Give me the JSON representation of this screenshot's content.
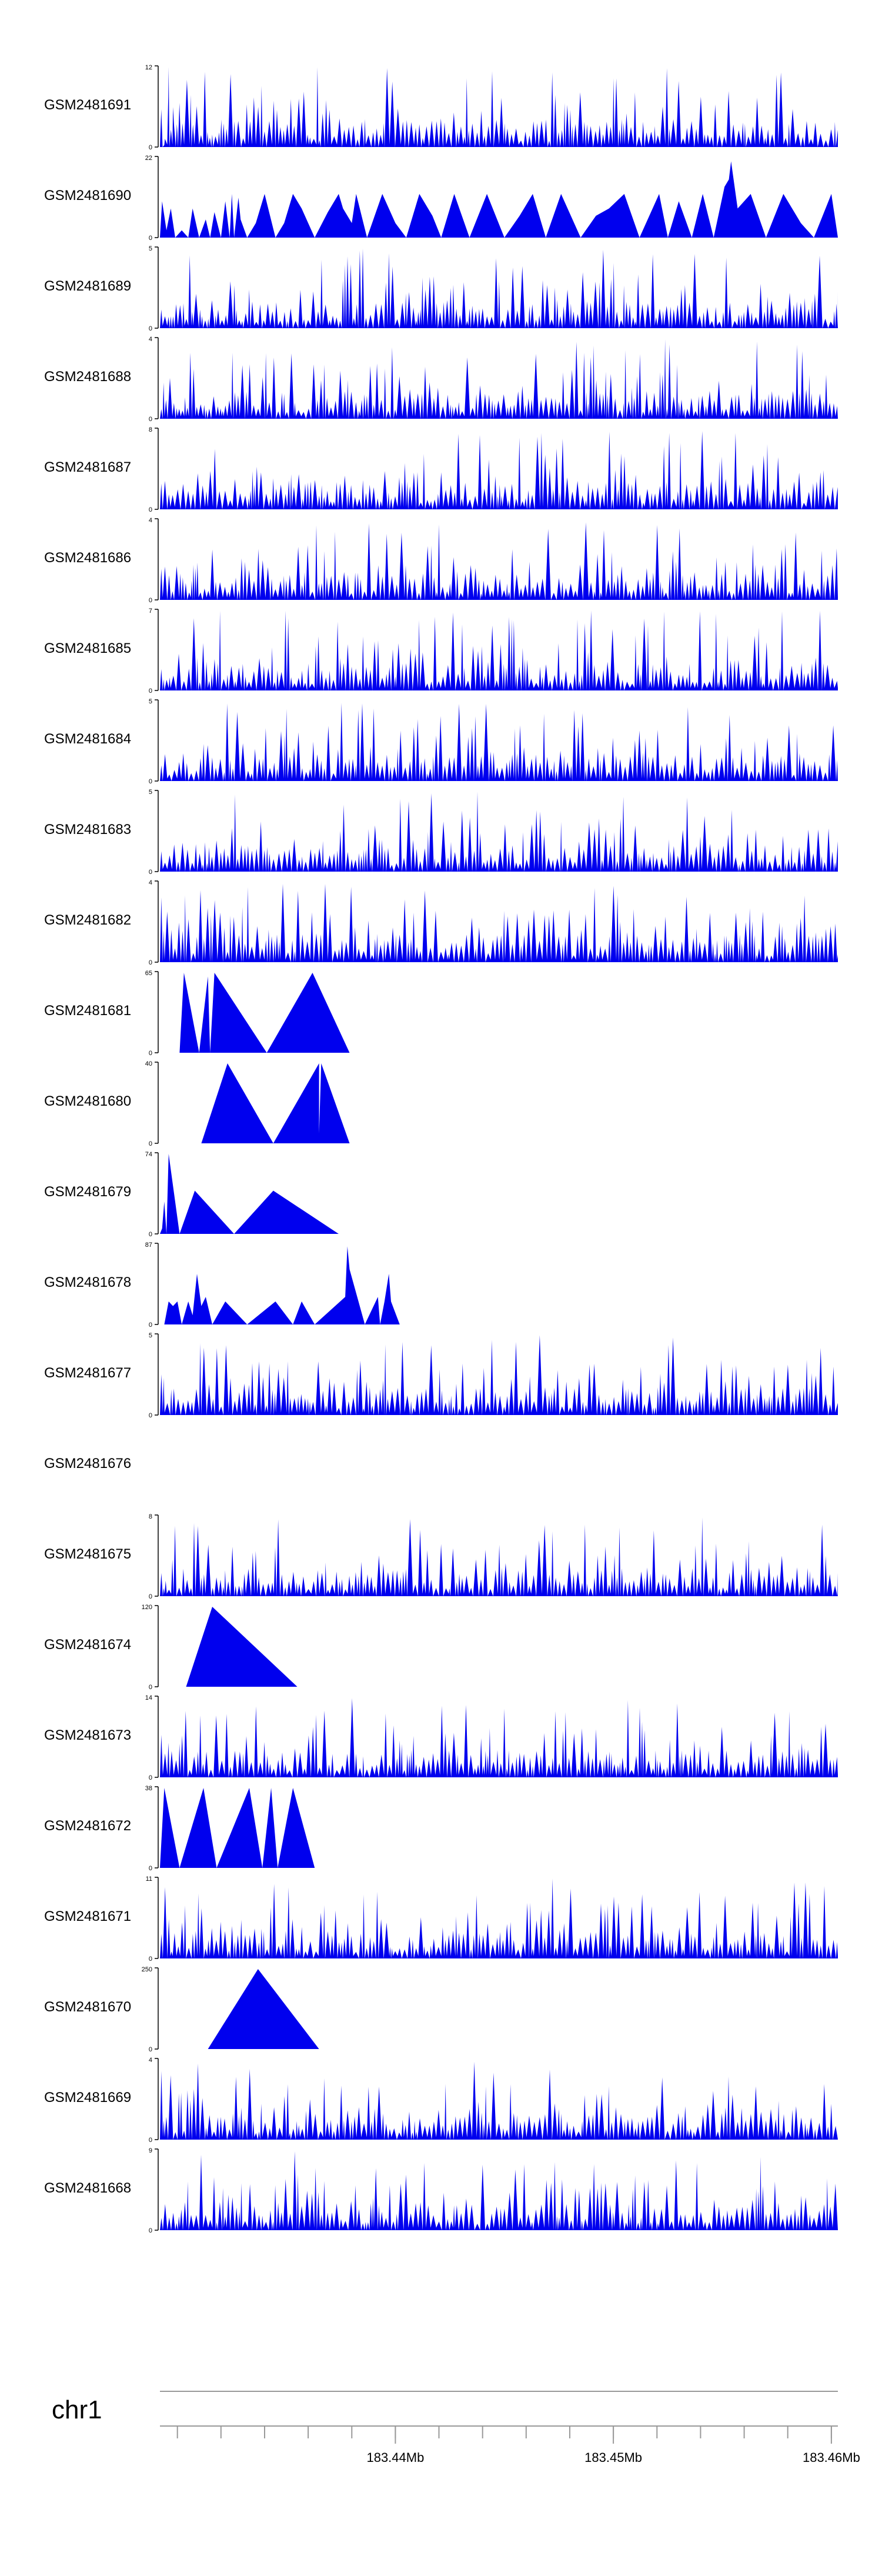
{
  "chart_data": {
    "type": "area",
    "title": "",
    "chromosome": "chr1",
    "x_unit": "Mb",
    "xlim": [
      183.4292,
      183.4603
    ],
    "x_ticks": [
      183.44,
      183.45,
      183.46
    ],
    "x_tick_labels": [
      "183.44Mb",
      "183.45Mb",
      "183.46Mb"
    ],
    "fill_color": "#0000ee",
    "axis_color": "#000000",
    "tracks": [
      {
        "name": "GSM2481691",
        "ymax": "12",
        "ymin": "0",
        "pattern": "spiky",
        "seed": 11,
        "peak": 1.0,
        "points": [
          [
            183.4294,
            0.3
          ],
          [
            183.4296,
            12
          ],
          [
            183.4298,
            6
          ],
          [
            183.43,
            2
          ]
        ]
      },
      {
        "name": "GSM2481690",
        "ymax": "22",
        "ymin": "0",
        "pattern": "points",
        "points": [
          [
            183.4292,
            0
          ],
          [
            183.4293,
            10
          ],
          [
            183.4295,
            2
          ],
          [
            183.4297,
            8
          ],
          [
            183.4299,
            0
          ],
          [
            183.4302,
            2
          ],
          [
            183.4305,
            0
          ],
          [
            183.4307,
            8
          ],
          [
            183.431,
            0
          ],
          [
            183.4313,
            5
          ],
          [
            183.4315,
            0
          ],
          [
            183.4317,
            7
          ],
          [
            183.432,
            0
          ],
          [
            183.4322,
            10
          ],
          [
            183.4324,
            0
          ],
          [
            183.4325,
            12
          ],
          [
            183.4326,
            0
          ],
          [
            183.4328,
            11
          ],
          [
            183.4329,
            5
          ],
          [
            183.4332,
            0
          ],
          [
            183.4336,
            4
          ],
          [
            183.434,
            12
          ],
          [
            183.4345,
            0
          ],
          [
            183.4349,
            4
          ],
          [
            183.4353,
            12
          ],
          [
            183.4357,
            8
          ],
          [
            183.4363,
            0
          ],
          [
            183.4369,
            7
          ],
          [
            183.4374,
            12
          ],
          [
            183.4376,
            8
          ],
          [
            183.438,
            4
          ],
          [
            183.4382,
            12
          ],
          [
            183.4387,
            0
          ],
          [
            183.4394,
            12
          ],
          [
            183.44,
            4
          ],
          [
            183.4405,
            0
          ],
          [
            183.4411,
            12
          ],
          [
            183.4417,
            6
          ],
          [
            183.4421,
            0
          ],
          [
            183.4427,
            12
          ],
          [
            183.4434,
            0
          ],
          [
            183.4442,
            12
          ],
          [
            183.445,
            0
          ],
          [
            183.4457,
            6
          ],
          [
            183.4463,
            12
          ],
          [
            183.4469,
            0
          ],
          [
            183.4476,
            12
          ],
          [
            183.4485,
            0
          ],
          [
            183.4492,
            6
          ],
          [
            183.4498,
            8
          ],
          [
            183.4505,
            12
          ],
          [
            183.4512,
            0
          ],
          [
            183.4521,
            12
          ],
          [
            183.4525,
            0
          ],
          [
            183.453,
            10
          ],
          [
            183.4536,
            0
          ],
          [
            183.4541,
            12
          ],
          [
            183.4546,
            0
          ],
          [
            183.4551,
            14
          ],
          [
            183.4553,
            16
          ],
          [
            183.4554,
            21
          ],
          [
            183.4557,
            8
          ],
          [
            183.4563,
            12
          ],
          [
            183.457,
            0
          ],
          [
            183.4578,
            12
          ],
          [
            183.4586,
            4
          ],
          [
            183.4592,
            0
          ],
          [
            183.46,
            12
          ],
          [
            183.4603,
            0
          ],
          [
            183.4603,
            12
          ]
        ]
      },
      {
        "name": "GSM2481689",
        "ymax": "5",
        "ymin": "0",
        "pattern": "spiky",
        "seed": 23,
        "peak": 1.0
      },
      {
        "name": "GSM2481688",
        "ymax": "4",
        "ymin": "0",
        "pattern": "spiky",
        "seed": 37,
        "peak": 1.0
      },
      {
        "name": "GSM2481687",
        "ymax": "8",
        "ymin": "0",
        "pattern": "spiky",
        "seed": 41,
        "peak": 1.0
      },
      {
        "name": "GSM2481686",
        "ymax": "4",
        "ymin": "0",
        "pattern": "spiky",
        "seed": 53,
        "peak": 1.0
      },
      {
        "name": "GSM2481685",
        "ymax": "7",
        "ymin": "0",
        "pattern": "spiky",
        "seed": 67,
        "peak": 1.0
      },
      {
        "name": "GSM2481684",
        "ymax": "5",
        "ymin": "0",
        "pattern": "spiky",
        "seed": 71,
        "peak": 1.0
      },
      {
        "name": "GSM2481683",
        "ymax": "5",
        "ymin": "0",
        "pattern": "spiky",
        "seed": 83,
        "peak": 1.0
      },
      {
        "name": "GSM2481682",
        "ymax": "4",
        "ymin": "0",
        "pattern": "spiky",
        "seed": 97,
        "peak": 1.0
      },
      {
        "name": "GSM2481681",
        "ymax": "65",
        "ymin": "0",
        "pattern": "points",
        "points": [
          [
            183.4301,
            0
          ],
          [
            183.4303,
            65
          ],
          [
            183.431,
            0
          ],
          [
            183.4314,
            62
          ],
          [
            183.4315,
            0
          ],
          [
            183.4317,
            65
          ],
          [
            183.4341,
            0
          ],
          [
            183.4362,
            65
          ],
          [
            183.4379,
            0
          ]
        ]
      },
      {
        "name": "GSM2481680",
        "ymax": "40",
        "ymin": "0",
        "pattern": "points",
        "points": [
          [
            183.4311,
            0
          ],
          [
            183.4323,
            40
          ],
          [
            183.4344,
            0
          ],
          [
            183.4365,
            40
          ],
          [
            183.4365,
            5
          ],
          [
            183.4366,
            40
          ],
          [
            183.4379,
            0
          ]
        ]
      },
      {
        "name": "GSM2481679",
        "ymax": "74",
        "ymin": "0",
        "pattern": "points",
        "points": [
          [
            183.4292,
            0
          ],
          [
            183.4293,
            5
          ],
          [
            183.4294,
            30
          ],
          [
            183.4295,
            0
          ],
          [
            183.4296,
            74
          ],
          [
            183.4301,
            0
          ],
          [
            183.4308,
            40
          ],
          [
            183.4326,
            0
          ],
          [
            183.4344,
            40
          ],
          [
            183.4374,
            0
          ]
        ]
      },
      {
        "name": "GSM2481678",
        "ymax": "87",
        "ymin": "0",
        "pattern": "points",
        "points": [
          [
            183.4294,
            0
          ],
          [
            183.4296,
            25
          ],
          [
            183.4298,
            20
          ],
          [
            183.43,
            25
          ],
          [
            183.4302,
            0
          ],
          [
            183.4305,
            25
          ],
          [
            183.4307,
            10
          ],
          [
            183.4309,
            55
          ],
          [
            183.4311,
            20
          ],
          [
            183.4313,
            30
          ],
          [
            183.4316,
            0
          ],
          [
            183.4322,
            25
          ],
          [
            183.4332,
            0
          ],
          [
            183.4345,
            25
          ],
          [
            183.4353,
            0
          ],
          [
            183.4357,
            25
          ],
          [
            183.4363,
            0
          ],
          [
            183.4377,
            30
          ],
          [
            183.4378,
            85
          ],
          [
            183.4379,
            60
          ],
          [
            183.4386,
            0
          ],
          [
            183.4392,
            30
          ],
          [
            183.4393,
            0
          ],
          [
            183.4395,
            25
          ],
          [
            183.4397,
            55
          ],
          [
            183.4398,
            25
          ],
          [
            183.4402,
            0
          ]
        ]
      },
      {
        "name": "GSM2481677",
        "ymax": "5",
        "ymin": "0",
        "pattern": "spiky",
        "seed": 109,
        "peak": 1.0
      },
      {
        "name": "GSM2481676",
        "ymax": "",
        "ymin": "",
        "pattern": "empty"
      },
      {
        "name": "GSM2481675",
        "ymax": "8",
        "ymin": "0",
        "pattern": "spiky",
        "seed": 127,
        "peak": 1.0
      },
      {
        "name": "GSM2481674",
        "ymax": "120",
        "ymin": "0",
        "pattern": "points",
        "points": [
          [
            183.4304,
            0
          ],
          [
            183.4316,
            120
          ],
          [
            183.4355,
            0
          ]
        ]
      },
      {
        "name": "GSM2481673",
        "ymax": "14",
        "ymin": "0",
        "pattern": "spiky",
        "seed": 131,
        "peak": 1.0
      },
      {
        "name": "GSM2481672",
        "ymax": "38",
        "ymin": "0",
        "pattern": "points",
        "points": [
          [
            183.4292,
            0
          ],
          [
            183.4294,
            38
          ],
          [
            183.4301,
            0
          ],
          [
            183.4312,
            38
          ],
          [
            183.4318,
            0
          ],
          [
            183.4333,
            38
          ],
          [
            183.4339,
            0
          ],
          [
            183.4343,
            38
          ],
          [
            183.4346,
            0
          ],
          [
            183.4353,
            38
          ],
          [
            183.4363,
            0
          ]
        ]
      },
      {
        "name": "GSM2481671",
        "ymax": "11",
        "ymin": "0",
        "pattern": "spiky",
        "seed": 149,
        "peak": 1.0
      },
      {
        "name": "GSM2481670",
        "ymax": "250",
        "ymin": "0",
        "pattern": "points",
        "points": [
          [
            183.4314,
            0
          ],
          [
            183.4337,
            250
          ],
          [
            183.4365,
            0
          ]
        ]
      },
      {
        "name": "GSM2481669",
        "ymax": "4",
        "ymin": "0",
        "pattern": "spiky",
        "seed": 163,
        "peak": 1.0
      },
      {
        "name": "GSM2481668",
        "ymax": "9",
        "ymin": "0",
        "pattern": "spiky",
        "seed": 173,
        "peak": 1.0
      }
    ]
  }
}
